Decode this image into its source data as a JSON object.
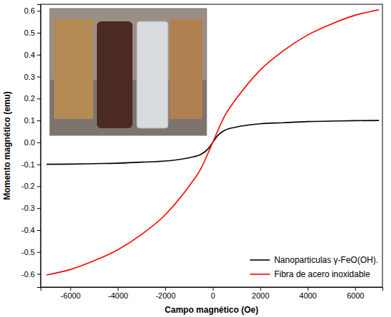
{
  "chart_data": {
    "type": "line",
    "x_label": "Campo magnético (Oe)",
    "y_label": "Momento magnético (emu)",
    "x": [
      -7000,
      -6000,
      -5000,
      -4000,
      -3000,
      -2000,
      -1000,
      -500,
      -200,
      0,
      200,
      500,
      1000,
      2000,
      3000,
      4000,
      5000,
      6000,
      7000
    ],
    "series": [
      {
        "name": "Nanoparticulas γ-FeO(OH).",
        "color": "#000000",
        "values": [
          -0.1,
          -0.099,
          -0.097,
          -0.095,
          -0.09,
          -0.085,
          -0.07,
          -0.055,
          -0.03,
          0,
          0.03,
          0.055,
          0.07,
          0.085,
          0.09,
          0.095,
          0.097,
          0.099,
          0.1
        ]
      },
      {
        "name": "Fibra de acero inoxidable",
        "color": "#ff0000",
        "values": [
          -0.605,
          -0.58,
          -0.54,
          -0.49,
          -0.42,
          -0.33,
          -0.2,
          -0.12,
          -0.05,
          0,
          0.05,
          0.12,
          0.2,
          0.33,
          0.42,
          0.49,
          0.54,
          0.58,
          0.605
        ]
      }
    ],
    "xlim": [
      -7250,
      7150
    ],
    "ylim": [
      -0.66,
      0.63
    ],
    "xticks": [
      -6000,
      -4000,
      -2000,
      0,
      2000,
      4000,
      6000
    ],
    "yticks": [
      -0.6,
      -0.5,
      -0.4,
      -0.3,
      -0.2,
      -0.1,
      {
        "value": 0,
        "label": "0.0"
      },
      0.1,
      0.2,
      0.3,
      0.4,
      0.5,
      0.6
    ],
    "legend": "lower right",
    "grid": false
  }
}
